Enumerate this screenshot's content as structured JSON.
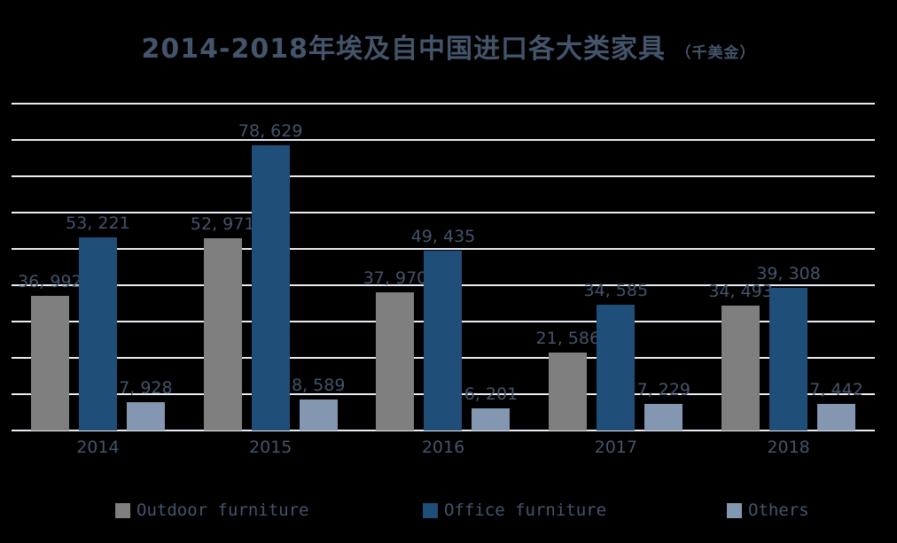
{
  "title": {
    "text": "2014-2018年埃及自中国进口各大类家具",
    "unit": "（千美金）"
  },
  "colors": {
    "background": "#000000",
    "text": "#44546A",
    "gridline": "#E9ECF2",
    "outdoor": "#7F7F7F",
    "office": "#1F4E79",
    "others": "#8497B0"
  },
  "chart_data": {
    "type": "bar",
    "title": "2014-2018年埃及自中国进口各大类家具（千美金）",
    "categories": [
      "2014",
      "2015",
      "2016",
      "2017",
      "2018"
    ],
    "series": [
      {
        "name": "Outdoor furniture",
        "color": "#7F7F7F",
        "values": [
          36992,
          52971,
          37970,
          21586,
          34493
        ],
        "labels": [
          "36, 992",
          "52, 971",
          "37, 970",
          "21, 586",
          "34, 493"
        ]
      },
      {
        "name": "Office furniture",
        "color": "#1F4E79",
        "values": [
          53221,
          78629,
          49435,
          34585,
          39308
        ],
        "labels": [
          "53, 221",
          "78, 629",
          "49, 435",
          "34, 585",
          "39, 308"
        ]
      },
      {
        "name": "Others",
        "color": "#8497B0",
        "values": [
          7928,
          8589,
          6201,
          7229,
          7442
        ],
        "labels": [
          "7, 928",
          "8, 589",
          "6, 201",
          "7, 229",
          "7, 442"
        ]
      }
    ],
    "xlabel": "",
    "ylabel": "",
    "ylim": [
      0,
      90000
    ],
    "grid_interval": 10000,
    "grid": "horizontal gridlines on, no y tick labels",
    "legend_position": "bottom"
  },
  "legend": {
    "items": [
      "Outdoor furniture",
      "Office furniture",
      "Others"
    ]
  }
}
